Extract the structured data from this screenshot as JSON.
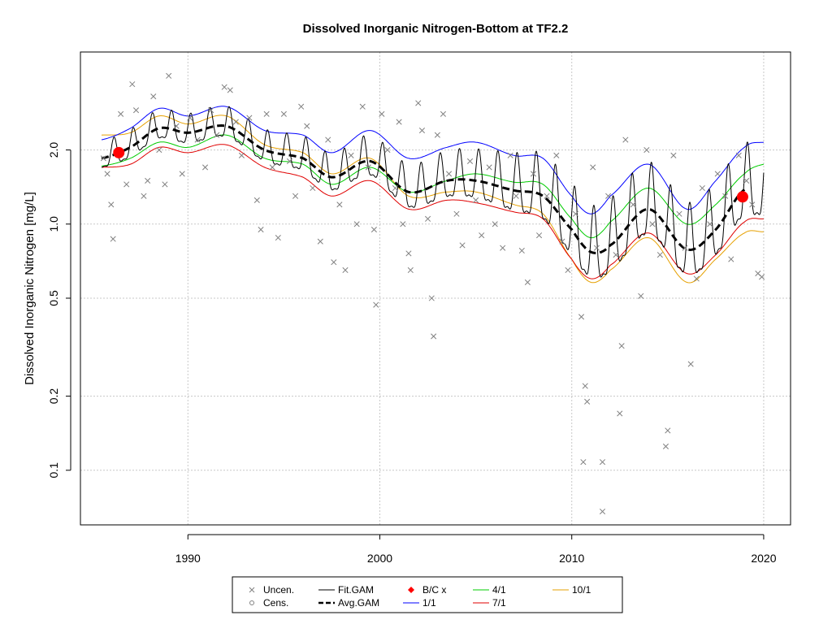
{
  "chart_data": {
    "type": "scatter",
    "title": "Dissolved Inorganic Nitrogen-Bottom at TF2.2",
    "xlabel": "",
    "ylabel": "Dissolved Inorganic Nitrogen [mg/L]",
    "scale_y": "log",
    "xlim": [
      1984.4,
      2021.4
    ],
    "ylim": [
      0.06,
      5.0
    ],
    "x_ticks": [
      1990,
      2000,
      2010,
      2020
    ],
    "x_tick_labels": [
      "1990",
      "2000",
      "2010",
      "2020"
    ],
    "y_ticks": [
      0.1,
      0.2,
      0.5,
      1.0,
      2.0
    ],
    "y_tick_labels": [
      "0.1",
      "0.2",
      "0.5",
      "1.0",
      "2.0"
    ],
    "grid": true,
    "legend_position": "bottom",
    "colors": {
      "points": "#808080",
      "fit_gam": "#000000",
      "avg_gam": "#000000",
      "bc": "#ff0000",
      "s1_1": "#0000ff",
      "s4_1": "#00cc00",
      "s7_1": "#e00000",
      "s10_1": "#e6a000",
      "grid": "#c8c8c8"
    },
    "legend": [
      {
        "key": "uncen",
        "label": "Uncen.",
        "symbol": "x-mark",
        "color": "#808080"
      },
      {
        "key": "fit",
        "label": "Fit.GAM",
        "symbol": "line",
        "color": "#000000"
      },
      {
        "key": "bc",
        "label": "B/C x",
        "symbol": "diamond",
        "color": "#ff0000"
      },
      {
        "key": "s4",
        "label": "4/1",
        "symbol": "line",
        "color": "#00cc00"
      },
      {
        "key": "s10",
        "label": "10/1",
        "symbol": "line",
        "color": "#e6a000"
      },
      {
        "key": "cens",
        "label": "Cens.",
        "symbol": "circle",
        "color": "#808080"
      },
      {
        "key": "avg",
        "label": "Avg.GAM",
        "symbol": "dashed-line",
        "color": "#000000"
      },
      {
        "key": "s1",
        "label": "1/1",
        "symbol": "line",
        "color": "#0000ff"
      },
      {
        "key": "s7",
        "label": "7/1",
        "symbol": "line",
        "color": "#e00000"
      }
    ],
    "bc_points": [
      {
        "x": 1986.4,
        "y": 1.95
      },
      {
        "x": 2018.9,
        "y": 1.29
      }
    ],
    "avg_gam": {
      "x": [
        1985.5,
        1987.0,
        1988.5,
        1990.0,
        1992.0,
        1994.0,
        1996.0,
        1997.5,
        1999.5,
        2001.5,
        2003.5,
        2005.0,
        2007.0,
        2008.5,
        2010.0,
        2011.0,
        2012.0,
        2014.0,
        2016.0,
        2017.5,
        2019.0
      ],
      "y": [
        1.85,
        2.05,
        2.45,
        2.35,
        2.5,
        2.0,
        1.85,
        1.55,
        1.8,
        1.35,
        1.5,
        1.5,
        1.37,
        1.3,
        0.95,
        0.77,
        0.82,
        1.15,
        0.79,
        0.95,
        1.38
      ]
    },
    "seasonal_1_1": {
      "x": [
        1985.5,
        1987.0,
        1988.5,
        1990.0,
        1992.0,
        1994.0,
        1996.0,
        1997.5,
        1999.5,
        2001.5,
        2003.5,
        2005.0,
        2007.0,
        2008.5,
        2010.0,
        2011.0,
        2012.0,
        2014.0,
        2016.0,
        2017.5,
        2019.0,
        2020.0
      ],
      "y": [
        2.2,
        2.45,
        2.95,
        2.75,
        3.0,
        2.4,
        2.3,
        1.95,
        2.4,
        1.85,
        2.05,
        2.15,
        1.9,
        1.85,
        1.3,
        1.1,
        1.3,
        1.75,
        1.15,
        1.5,
        2.05,
        2.15
      ]
    },
    "seasonal_4_1": {
      "x": [
        1985.5,
        1987.0,
        1988.5,
        1990.0,
        1992.0,
        1994.0,
        1996.0,
        1997.5,
        1999.5,
        2001.5,
        2003.5,
        2005.0,
        2007.0,
        2008.5,
        2010.0,
        2011.0,
        2012.0,
        2014.0,
        2016.0,
        2017.5,
        2019.0,
        2020.0
      ],
      "y": [
        1.72,
        1.85,
        2.15,
        2.05,
        2.3,
        1.85,
        1.75,
        1.45,
        1.7,
        1.35,
        1.5,
        1.6,
        1.48,
        1.45,
        1.05,
        0.88,
        1.02,
        1.4,
        1.0,
        1.2,
        1.6,
        1.75
      ]
    },
    "seasonal_7_1": {
      "x": [
        1985.5,
        1987.0,
        1988.5,
        1990.0,
        1992.0,
        1994.0,
        1996.0,
        1997.5,
        1999.5,
        2001.5,
        2003.5,
        2005.0,
        2007.0,
        2008.5,
        2010.0,
        2011.0,
        2012.0,
        2014.0,
        2016.0,
        2017.5,
        2019.0,
        2020.0
      ],
      "y": [
        1.7,
        1.75,
        2.05,
        1.95,
        2.1,
        1.7,
        1.55,
        1.3,
        1.5,
        1.15,
        1.25,
        1.22,
        1.12,
        1.05,
        0.72,
        0.6,
        0.68,
        0.92,
        0.63,
        0.75,
        1.02,
        1.05
      ]
    },
    "seasonal_10_1": {
      "x": [
        1985.5,
        1987.0,
        1988.5,
        1990.0,
        1992.0,
        1994.0,
        1996.0,
        1997.5,
        1999.5,
        2001.5,
        2003.5,
        2005.0,
        2007.0,
        2008.5,
        2010.0,
        2011.0,
        2012.0,
        2014.0,
        2016.0,
        2017.5,
        2019.0,
        2020.0
      ],
      "y": [
        2.3,
        2.35,
        2.75,
        2.55,
        2.75,
        2.1,
        1.95,
        1.6,
        1.85,
        1.3,
        1.35,
        1.35,
        1.2,
        1.1,
        0.72,
        0.58,
        0.65,
        0.88,
        0.58,
        0.72,
        0.92,
        0.93
      ]
    },
    "fit_gam": {
      "x_start": 1985.5,
      "x_end": 2020.0,
      "seasonal_amplitude_log": [
        {
          "x": 1985.5,
          "amp": 0.12
        },
        {
          "x": 1995.0,
          "amp": 0.15
        },
        {
          "x": 2005.0,
          "amp": 0.22
        },
        {
          "x": 2010.0,
          "amp": 0.33
        },
        {
          "x": 2020.0,
          "amp": 0.33
        }
      ]
    },
    "uncensored_points": [
      {
        "x": 1985.6,
        "y": 1.85
      },
      {
        "x": 1985.8,
        "y": 1.6
      },
      {
        "x": 1986.0,
        "y": 1.2
      },
      {
        "x": 1986.1,
        "y": 0.87
      },
      {
        "x": 1986.5,
        "y": 2.8
      },
      {
        "x": 1986.8,
        "y": 1.45
      },
      {
        "x": 1987.1,
        "y": 3.7
      },
      {
        "x": 1987.3,
        "y": 2.9
      },
      {
        "x": 1987.7,
        "y": 1.3
      },
      {
        "x": 1987.9,
        "y": 1.5
      },
      {
        "x": 1988.2,
        "y": 3.3
      },
      {
        "x": 1988.5,
        "y": 2.0
      },
      {
        "x": 1988.8,
        "y": 1.45
      },
      {
        "x": 1989.0,
        "y": 4.0
      },
      {
        "x": 1989.4,
        "y": 2.5
      },
      {
        "x": 1989.7,
        "y": 1.6
      },
      {
        "x": 1990.1,
        "y": 2.7
      },
      {
        "x": 1990.5,
        "y": 2.2
      },
      {
        "x": 1990.9,
        "y": 1.7
      },
      {
        "x": 1991.2,
        "y": 2.9
      },
      {
        "x": 1991.5,
        "y": 2.3
      },
      {
        "x": 1991.9,
        "y": 3.6
      },
      {
        "x": 1992.2,
        "y": 3.5
      },
      {
        "x": 1992.5,
        "y": 2.6
      },
      {
        "x": 1992.8,
        "y": 1.9
      },
      {
        "x": 1993.2,
        "y": 2.7
      },
      {
        "x": 1993.6,
        "y": 1.25
      },
      {
        "x": 1993.8,
        "y": 0.95
      },
      {
        "x": 1994.1,
        "y": 2.8
      },
      {
        "x": 1994.4,
        "y": 1.7
      },
      {
        "x": 1994.7,
        "y": 0.88
      },
      {
        "x": 1995.0,
        "y": 2.8
      },
      {
        "x": 1995.3,
        "y": 1.8
      },
      {
        "x": 1995.6,
        "y": 1.3
      },
      {
        "x": 1995.9,
        "y": 3.0
      },
      {
        "x": 1996.2,
        "y": 2.5
      },
      {
        "x": 1996.5,
        "y": 1.4
      },
      {
        "x": 1996.9,
        "y": 0.85
      },
      {
        "x": 1997.3,
        "y": 2.2
      },
      {
        "x": 1997.6,
        "y": 0.7
      },
      {
        "x": 1997.9,
        "y": 1.2
      },
      {
        "x": 1998.2,
        "y": 0.65
      },
      {
        "x": 1998.5,
        "y": 1.9
      },
      {
        "x": 1998.8,
        "y": 1.0
      },
      {
        "x": 1999.1,
        "y": 3.0
      },
      {
        "x": 1999.4,
        "y": 1.7
      },
      {
        "x": 1999.7,
        "y": 0.95
      },
      {
        "x": 1999.8,
        "y": 0.47
      },
      {
        "x": 2000.1,
        "y": 2.8
      },
      {
        "x": 2000.4,
        "y": 2.0
      },
      {
        "x": 2000.8,
        "y": 1.4
      },
      {
        "x": 2001.0,
        "y": 2.6
      },
      {
        "x": 2001.2,
        "y": 1.0
      },
      {
        "x": 2001.5,
        "y": 0.76
      },
      {
        "x": 2001.6,
        "y": 0.65
      },
      {
        "x": 2002.0,
        "y": 3.1
      },
      {
        "x": 2002.2,
        "y": 2.4
      },
      {
        "x": 2002.5,
        "y": 1.05
      },
      {
        "x": 2002.7,
        "y": 0.5
      },
      {
        "x": 2002.8,
        "y": 0.35
      },
      {
        "x": 2003.0,
        "y": 2.3
      },
      {
        "x": 2003.3,
        "y": 2.8
      },
      {
        "x": 2003.6,
        "y": 1.6
      },
      {
        "x": 2004.0,
        "y": 1.1
      },
      {
        "x": 2004.3,
        "y": 0.82
      },
      {
        "x": 2004.7,
        "y": 1.8
      },
      {
        "x": 2005.0,
        "y": 1.25
      },
      {
        "x": 2005.3,
        "y": 0.9
      },
      {
        "x": 2005.7,
        "y": 1.7
      },
      {
        "x": 2006.0,
        "y": 1.0
      },
      {
        "x": 2006.4,
        "y": 0.8
      },
      {
        "x": 2006.8,
        "y": 1.9
      },
      {
        "x": 2007.1,
        "y": 1.3
      },
      {
        "x": 2007.4,
        "y": 0.78
      },
      {
        "x": 2007.7,
        "y": 0.58
      },
      {
        "x": 2008.0,
        "y": 1.6
      },
      {
        "x": 2008.3,
        "y": 0.9
      },
      {
        "x": 2008.7,
        "y": 1.3
      },
      {
        "x": 2009.2,
        "y": 1.9
      },
      {
        "x": 2009.5,
        "y": 0.85
      },
      {
        "x": 2009.8,
        "y": 0.65
      },
      {
        "x": 2010.2,
        "y": 1.1
      },
      {
        "x": 2010.5,
        "y": 0.42
      },
      {
        "x": 2010.6,
        "y": 0.108
      },
      {
        "x": 2010.7,
        "y": 0.22
      },
      {
        "x": 2010.8,
        "y": 0.19
      },
      {
        "x": 2011.1,
        "y": 1.7
      },
      {
        "x": 2011.3,
        "y": 0.8
      },
      {
        "x": 2011.6,
        "y": 0.108
      },
      {
        "x": 2011.6,
        "y": 0.068
      },
      {
        "x": 2011.9,
        "y": 1.3
      },
      {
        "x": 2012.3,
        "y": 0.75
      },
      {
        "x": 2012.5,
        "y": 0.17
      },
      {
        "x": 2012.6,
        "y": 0.32
      },
      {
        "x": 2012.8,
        "y": 2.2
      },
      {
        "x": 2013.2,
        "y": 1.2
      },
      {
        "x": 2013.6,
        "y": 0.51
      },
      {
        "x": 2013.9,
        "y": 2.0
      },
      {
        "x": 2014.2,
        "y": 1.0
      },
      {
        "x": 2014.6,
        "y": 0.75
      },
      {
        "x": 2014.9,
        "y": 0.125
      },
      {
        "x": 2015.0,
        "y": 0.145
      },
      {
        "x": 2015.3,
        "y": 1.9
      },
      {
        "x": 2015.6,
        "y": 1.1
      },
      {
        "x": 2015.9,
        "y": 0.8
      },
      {
        "x": 2016.2,
        "y": 0.27
      },
      {
        "x": 2016.5,
        "y": 0.6
      },
      {
        "x": 2016.8,
        "y": 1.4
      },
      {
        "x": 2017.2,
        "y": 1.0
      },
      {
        "x": 2017.6,
        "y": 1.6
      },
      {
        "x": 2018.0,
        "y": 1.3
      },
      {
        "x": 2018.3,
        "y": 0.72
      },
      {
        "x": 2018.7,
        "y": 1.9
      },
      {
        "x": 2019.1,
        "y": 1.5
      },
      {
        "x": 2019.4,
        "y": 1.2
      },
      {
        "x": 2019.7,
        "y": 0.63
      },
      {
        "x": 2019.9,
        "y": 0.61
      }
    ]
  }
}
